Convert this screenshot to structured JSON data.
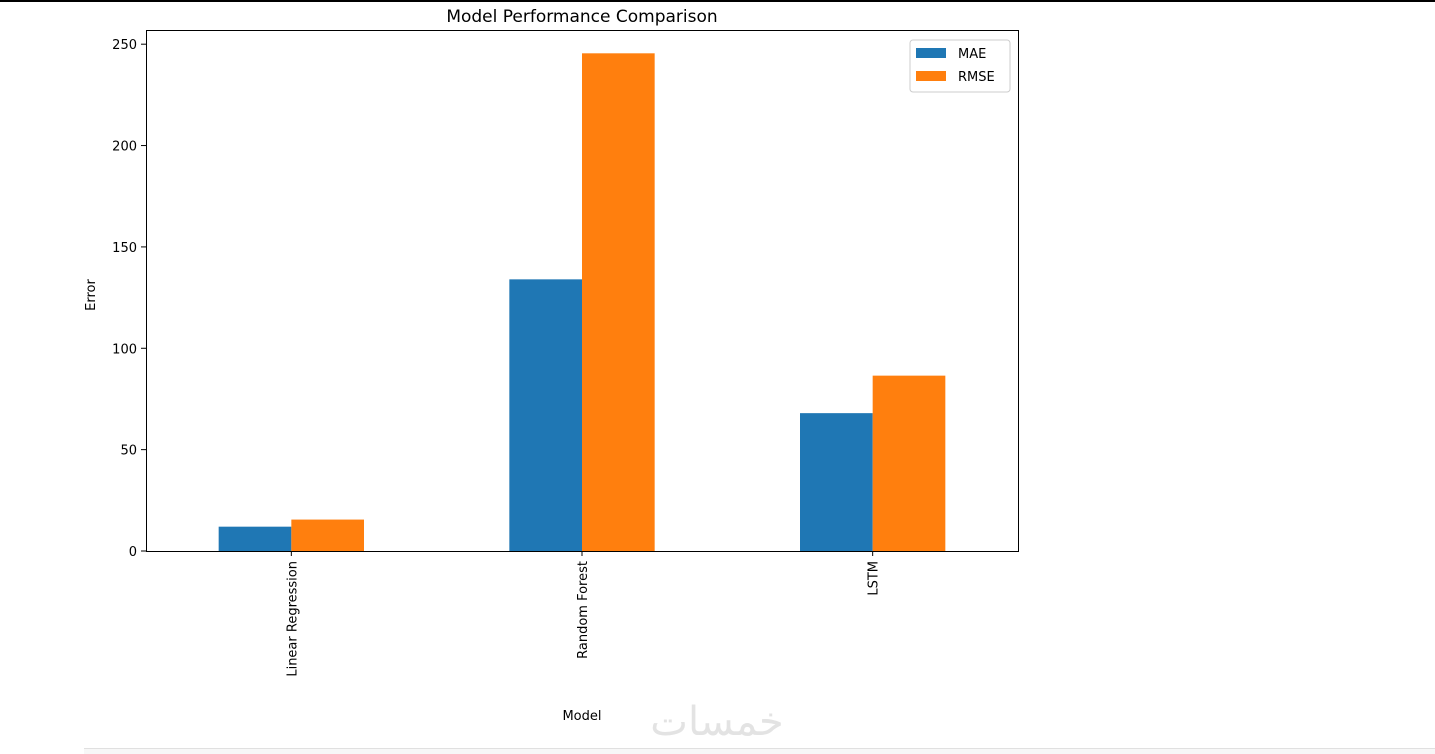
{
  "chart_data": {
    "type": "bar",
    "title": "Model Performance Comparison",
    "xlabel": "Model",
    "ylabel": "Error",
    "categories": [
      "Linear Regression",
      "Random Forest",
      "LSTM"
    ],
    "series": [
      {
        "name": "MAE",
        "color": "#1f77b4",
        "values": [
          12,
          134,
          68
        ]
      },
      {
        "name": "RMSE",
        "color": "#ff7f0e",
        "values": [
          15.5,
          245.5,
          86.5
        ]
      }
    ],
    "ylim": [
      0,
      257
    ],
    "yticks": [
      0,
      50,
      100,
      150,
      200,
      250
    ],
    "grid": false,
    "legend_position": "top-right",
    "xtick_rotation": "vertical"
  },
  "watermark": {
    "text": "خمسات",
    "color": "#e3e3e3"
  }
}
